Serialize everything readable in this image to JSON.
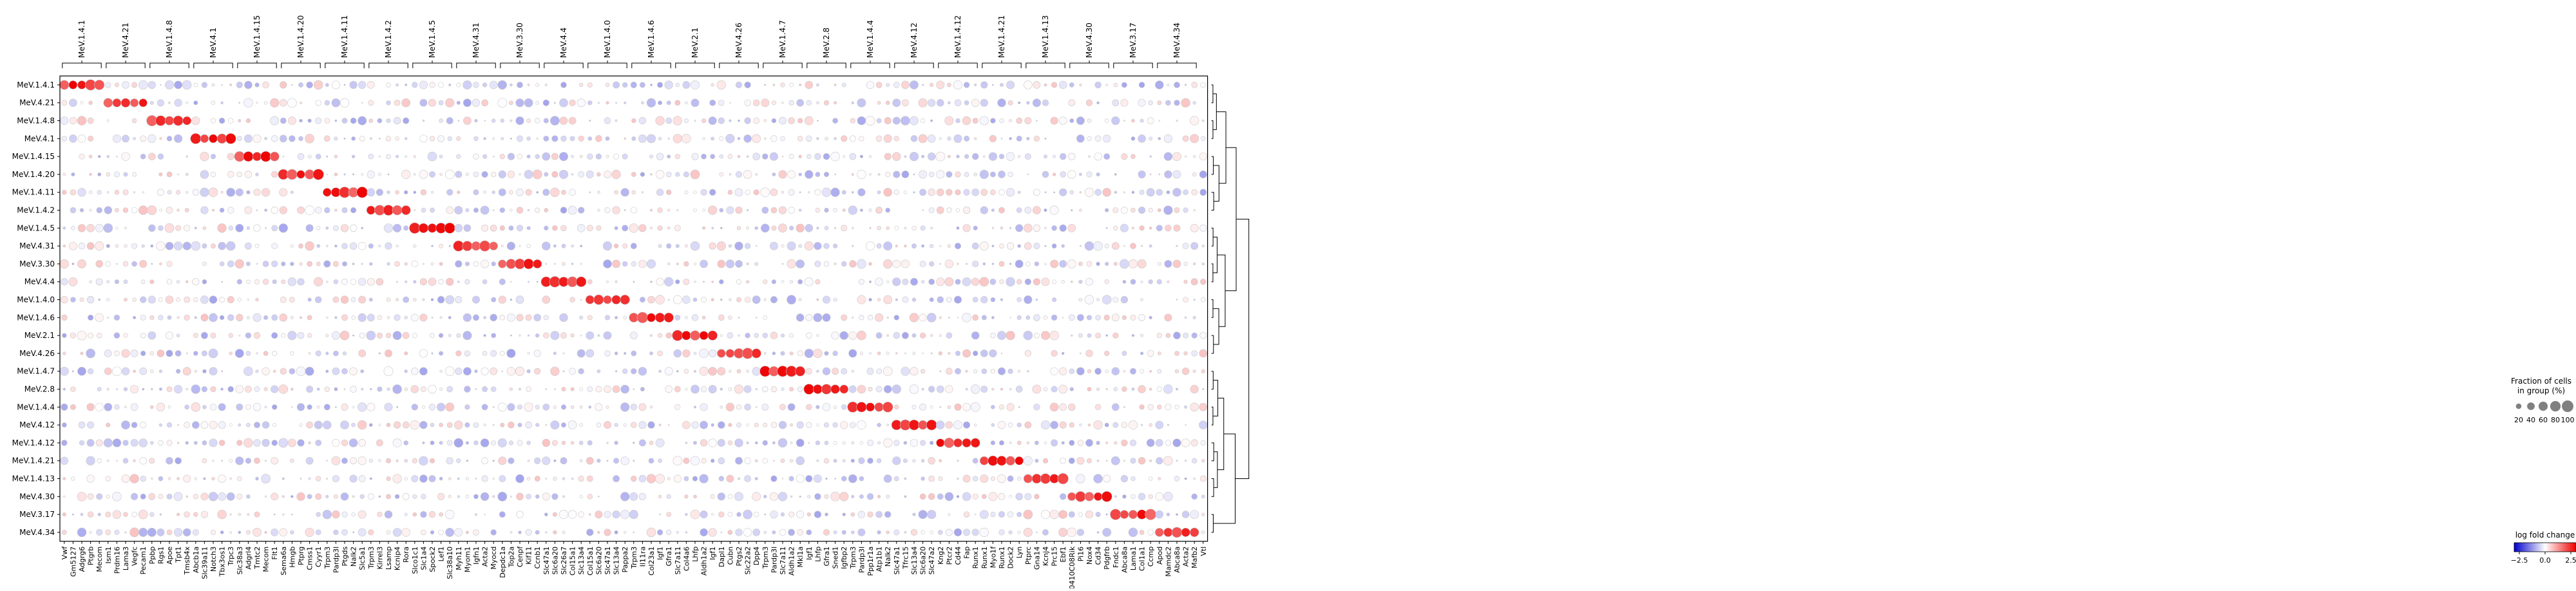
{
  "chart_data": {
    "type": "dotplot",
    "title": "",
    "xlabel": "",
    "ylabel": "",
    "rows": [
      "MeV.1.4.1",
      "MeV.4.21",
      "MeV.1.4.8",
      "MeV.4.1",
      "MeV.1.4.15",
      "MeV.1.4.20",
      "MeV.1.4.11",
      "MeV.1.4.2",
      "MeV.1.4.5",
      "MeV.4.31",
      "MeV.3.30",
      "MeV.4.4",
      "MeV.1.4.0",
      "MeV.1.4.6",
      "MeV.2.1",
      "MeV.4.26",
      "MeV.1.4.7",
      "MeV.2.8",
      "MeV.1.4.4",
      "MeV.4.12",
      "MeV.1.4.12",
      "MeV.1.4.21",
      "MeV.1.4.13",
      "MeV.4.30",
      "MeV.3.17",
      "MeV.4.34"
    ],
    "groups": [
      {
        "label": "MeV.1.4.1",
        "genes": [
          "Vwf",
          "Gm5127",
          "Adgrg6",
          "Ptgrb",
          "Mecom"
        ]
      },
      {
        "label": "MeV.4.21",
        "genes": [
          "Ism1",
          "Prdm16",
          "Lama3",
          "Vegfc",
          "Pecam1"
        ]
      },
      {
        "label": "MeV.1.4.8",
        "genes": [
          "Ppbp",
          "Rgs1",
          "Apoe",
          "Tpt1",
          "Tmsb4x"
        ]
      },
      {
        "label": "MeV.4.1",
        "genes": [
          "Abcb1a",
          "Slc39a11",
          "Notch3",
          "Tbx3os1",
          "Trpc3"
        ]
      },
      {
        "label": "MeV.1.4.15",
        "genes": [
          "Slc38a3",
          "Adgrl4",
          "Tmtc2",
          "Mecom",
          "Flt1"
        ]
      },
      {
        "label": "MeV.1.4.20",
        "genes": [
          "Sema6a",
          "Hmgb",
          "Ptprg",
          "Cmss1",
          "Cyyr1"
        ]
      },
      {
        "label": "MeV.1.4.11",
        "genes": [
          "Trpm3",
          "Pardp3l",
          "Ptgds",
          "Nalk2",
          "Slc5a1"
        ]
      },
      {
        "label": "MeV.1.4.2",
        "genes": [
          "Trpm3",
          "Kirrel3",
          "Lsamp",
          "Kcnip4",
          "Rora"
        ]
      },
      {
        "label": "MeV.1.4.5",
        "genes": [
          "Slco1c1",
          "Slc1a4",
          "Spock2",
          "Lef1",
          "Slc38a10"
        ]
      },
      {
        "label": "MeV.4.31",
        "genes": [
          "Myh11",
          "Myom1",
          "Igfn1",
          "Acta2",
          "Myocd"
        ]
      },
      {
        "label": "MeV.3.30",
        "genes": [
          "Depdc1a",
          "Top2a",
          "Cenpf",
          "Kif11",
          "Ccnb1"
        ]
      },
      {
        "label": "MeV.4.4",
        "genes": [
          "Slc47a1",
          "Slc6a20",
          "Slc26a7",
          "Col15a1",
          "Slc13a4"
        ]
      },
      {
        "label": "MeV.1.4.0",
        "genes": [
          "Col15a1",
          "Slc6a20",
          "Slc47a1",
          "Slc13a4",
          "Pappa2"
        ]
      },
      {
        "label": "MeV.1.4.6",
        "genes": [
          "Trpm3",
          "Il11ra",
          "Col23a1",
          "Igf1",
          "Gfra1"
        ]
      },
      {
        "label": "MeV.2.1",
        "genes": [
          "Slc7a11",
          "Col4a6",
          "Lhfp",
          "Aldh1a2",
          "Igf1"
        ]
      },
      {
        "label": "MeV.4.26",
        "genes": [
          "Dapl1",
          "Cubn",
          "Ptgs2",
          "Slc22a2",
          "Dpp4"
        ]
      },
      {
        "label": "MeV.1.4.7",
        "genes": [
          "Trpm3",
          "Pardp3l",
          "Slc7a11",
          "Aldh1a2",
          "Mkl1a"
        ]
      },
      {
        "label": "MeV.2.8",
        "genes": [
          "Igf1",
          "Lhfp",
          "Gfra1",
          "Sned1",
          "Igfbp2"
        ]
      },
      {
        "label": "MeV.1.4.4",
        "genes": [
          "Trpm3",
          "Pardp3l",
          "Ppp1r1a",
          "Atp1b1",
          "Nalk2"
        ]
      },
      {
        "label": "MeV.4.12",
        "genes": [
          "Slc47a1",
          "Tfrc15",
          "Slc13a4",
          "Slc6a20",
          "Slc47a2"
        ]
      },
      {
        "label": "MeV.1.4.12",
        "genes": [
          "Kng2",
          "Ptcr2",
          "Cd44",
          "Fap",
          "Runx1"
        ]
      },
      {
        "label": "MeV.1.4.21",
        "genes": [
          "Runx1",
          "Myo1f",
          "Runx1",
          "Dock2",
          "Lyn"
        ]
      },
      {
        "label": "MeV.1.4.13",
        "genes": [
          "Ptprc",
          "Gna14",
          "Kcnj4",
          "Prc15",
          "Ebf1"
        ]
      },
      {
        "label": "MeV.4.30",
        "genes": [
          "9130410C08Rik",
          "Pi16",
          "Nox4",
          "Cd34",
          "Pdgfrb"
        ]
      },
      {
        "label": "MeV.3.17",
        "genes": [
          "Fndc1",
          "Abca8a",
          "Lama1",
          "Col1a1",
          "Ccmp"
        ]
      },
      {
        "label": "MeV.4.34",
        "genes": [
          "Apod",
          "Mamdc2",
          "Abca8a",
          "Acta2",
          "Mafb2"
        ]
      }
    ],
    "extra_gene": "Vtl",
    "value_encoding": {
      "color": "log fold change",
      "size": "Fraction of cells in group (%)"
    },
    "color_scale": {
      "label": "log fold change",
      "range": [
        -3,
        3
      ],
      "ticks": [
        -2.5,
        0.0,
        2.5
      ],
      "tick_labels": [
        "−2.5",
        "0.0",
        "2.5"
      ],
      "low_color": "#0000cc",
      "mid_color": "#ffffff",
      "high_color": "#ee0000"
    },
    "size_scale": {
      "label_line1": "Fraction of cells",
      "label_line2": "in group (%)",
      "values": [
        20,
        40,
        60,
        80,
        100
      ],
      "tick_labels": [
        "20",
        "40",
        "60",
        "80",
        "100"
      ]
    },
    "dendrogram": {
      "leaf_order": [
        "MeV.1.4.1",
        "MeV.4.21",
        "MeV.1.4.8",
        "MeV.4.1",
        "MeV.1.4.15",
        "MeV.1.4.20",
        "MeV.1.4.11",
        "MeV.1.4.2",
        "MeV.1.4.5",
        "MeV.4.31",
        "MeV.3.30",
        "MeV.4.4",
        "MeV.1.4.0",
        "MeV.1.4.6",
        "MeV.2.1",
        "MeV.4.26",
        "MeV.1.4.7",
        "MeV.2.8",
        "MeV.1.4.4",
        "MeV.4.12",
        "MeV.1.4.12",
        "MeV.1.4.21",
        "MeV.1.4.13",
        "MeV.4.30",
        "MeV.3.17",
        "MeV.4.34"
      ]
    },
    "grid": false,
    "legend_position": "right"
  }
}
